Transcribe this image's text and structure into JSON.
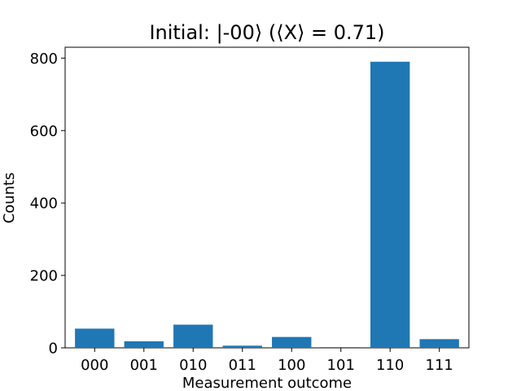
{
  "chart_data": {
    "type": "bar",
    "title": "Initial: |-00⟩ (⟨X⟩ = 0.71)",
    "xlabel": "Measurement outcome",
    "ylabel": "Counts",
    "categories": [
      "000",
      "001",
      "010",
      "011",
      "100",
      "101",
      "110",
      "111"
    ],
    "values": [
      53,
      18,
      64,
      6,
      30,
      2,
      790,
      24
    ],
    "ylim": [
      0,
      830
    ],
    "yticks": [
      "0",
      "200",
      "400",
      "600",
      "800"
    ],
    "grid": false,
    "bar_color": "#1f77b4"
  }
}
